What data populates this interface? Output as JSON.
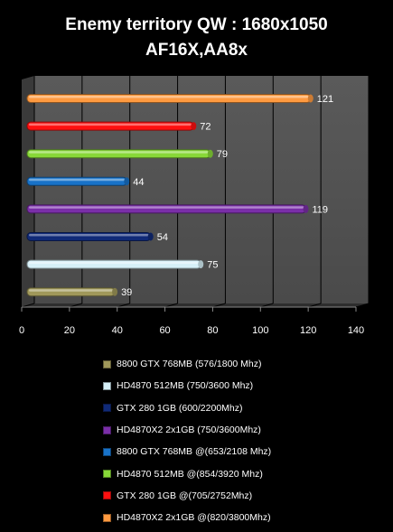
{
  "chart_data": {
    "type": "bar",
    "orientation": "horizontal",
    "title_lines": [
      "Enemy territory QW : 1680x1050",
      "AF16X,AA8x"
    ],
    "xlim": [
      0,
      140
    ],
    "xticks": [
      0,
      20,
      40,
      60,
      80,
      100,
      120,
      140
    ],
    "grid": true,
    "legend_position": "bottom",
    "series": [
      {
        "name": "8800 GTX 768MB (576/1800 Mhz)",
        "value": 39,
        "color": "#a0985a"
      },
      {
        "name": "HD4870 512MB (750/3600 Mhz)",
        "value": 75,
        "color": "#d6f0f8"
      },
      {
        "name": "GTX 280 1GB (600/2200Mhz)",
        "value": 54,
        "color": "#102a78"
      },
      {
        "name": "HD4870X2 2x1GB (750/3600Mhz)",
        "value": 119,
        "color": "#7a2ea8"
      },
      {
        "name": "8800 GTX 768MB @(653/2108 Mhz)",
        "value": 44,
        "color": "#1872c8"
      },
      {
        "name": "HD4870 512MB @(854/3920 Mhz)",
        "value": 79,
        "color": "#88d838"
      },
      {
        "name": "GTX 280 1GB @(705/2752Mhz)",
        "value": 72,
        "color": "#ff1010"
      },
      {
        "name": "HD4870X2 2x1GB @(820/3800Mhz)",
        "value": 121,
        "color": "#ff9a40"
      }
    ]
  }
}
